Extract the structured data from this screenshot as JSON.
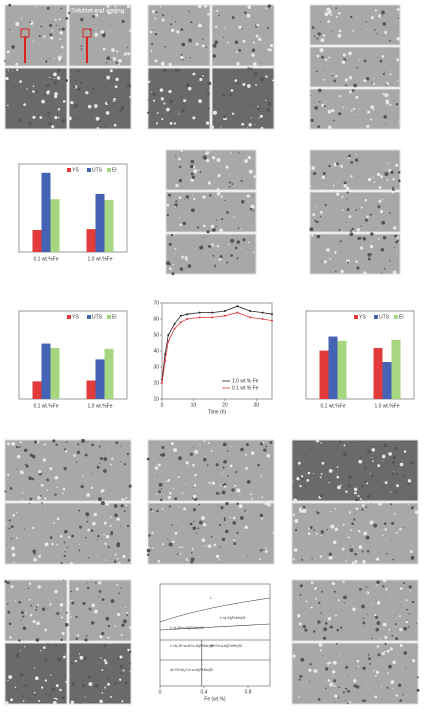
{
  "items": [
    {
      "type": "image",
      "label": "Solution and ageing"
    },
    {
      "type": "image"
    },
    {
      "type": "image"
    },
    {
      "type": "bar",
      "categories": [
        "0.1 wt.%Fe",
        "1.0 wt.%Fe"
      ],
      "ylim": [
        0,
        100
      ],
      "series": [
        {
          "name": "YS",
          "color": "#e23b3b",
          "values": [
            25,
            26
          ]
        },
        {
          "name": "UTS",
          "color": "#4463b5",
          "values": [
            90,
            66
          ]
        },
        {
          "name": "El",
          "color": "#a6d67f",
          "values": [
            60,
            59
          ]
        }
      ]
    },
    {
      "type": "image"
    },
    {
      "type": "image"
    },
    {
      "type": "bar",
      "categories": [
        "0.1 wt.%Fe",
        "1.0 wt.%Fe"
      ],
      "ylim": [
        0,
        100
      ],
      "series": [
        {
          "name": "YS",
          "color": "#e23b3b",
          "values": [
            20,
            21
          ]
        },
        {
          "name": "UTS",
          "color": "#4463b5",
          "values": [
            63,
            45
          ]
        },
        {
          "name": "El",
          "color": "#a6d67f",
          "values": [
            58,
            57
          ]
        }
      ]
    },
    {
      "type": "line",
      "xlabel": "Time (h)",
      "xlim": [
        0,
        35
      ],
      "xticks": [
        0,
        10,
        20,
        30
      ],
      "ylim": [
        10,
        70
      ],
      "yticks": [
        10,
        20,
        30,
        40,
        50,
        60,
        70
      ],
      "x": [
        0,
        1,
        2,
        4,
        6,
        8,
        12,
        16,
        20,
        24,
        28,
        32,
        35
      ],
      "series": [
        {
          "name": "1.0 wt.% Fe",
          "color": "#222222",
          "values": [
            22,
            38,
            50,
            57,
            62,
            63,
            64,
            64,
            65,
            68,
            65,
            64,
            63
          ]
        },
        {
          "name": "0.1 wt.% Fe",
          "color": "#e23b3b",
          "values": [
            20,
            34,
            46,
            54,
            58,
            60,
            61,
            61,
            62,
            64,
            61,
            60,
            59
          ]
        }
      ]
    },
    {
      "type": "bar",
      "categories": [
        "0.1 wt.%Fe",
        "1.0 wt.%Fe"
      ],
      "ylim": [
        0,
        100
      ],
      "series": [
        {
          "name": "YS",
          "color": "#e23b3b",
          "values": [
            55,
            58
          ]
        },
        {
          "name": "UTS",
          "color": "#4463b5",
          "values": [
            71,
            42
          ]
        },
        {
          "name": "El",
          "color": "#a6d67f",
          "values": [
            66,
            67
          ]
        }
      ]
    },
    {
      "type": "image"
    },
    {
      "type": "image"
    },
    {
      "type": "image"
    },
    {
      "type": "image"
    },
    {
      "type": "phase",
      "xlabel": "Fe (wt.%)",
      "xticks": [
        0,
        0.4,
        0.8
      ],
      "xlim": [
        0,
        1.0
      ],
      "regions": [
        "L",
        "L+α-Al(FeMn)Si",
        "L+α-Al+α-Al(FeMn)Si",
        "L+Al₂Si+α-Al+α-Al(FeMn)Si",
        "Al+Si+α-Al(FeMn)Si",
        "Al+Si+Al₂Cu+α-Al(FeMn)Si"
      ]
    },
    {
      "type": "image"
    }
  ]
}
